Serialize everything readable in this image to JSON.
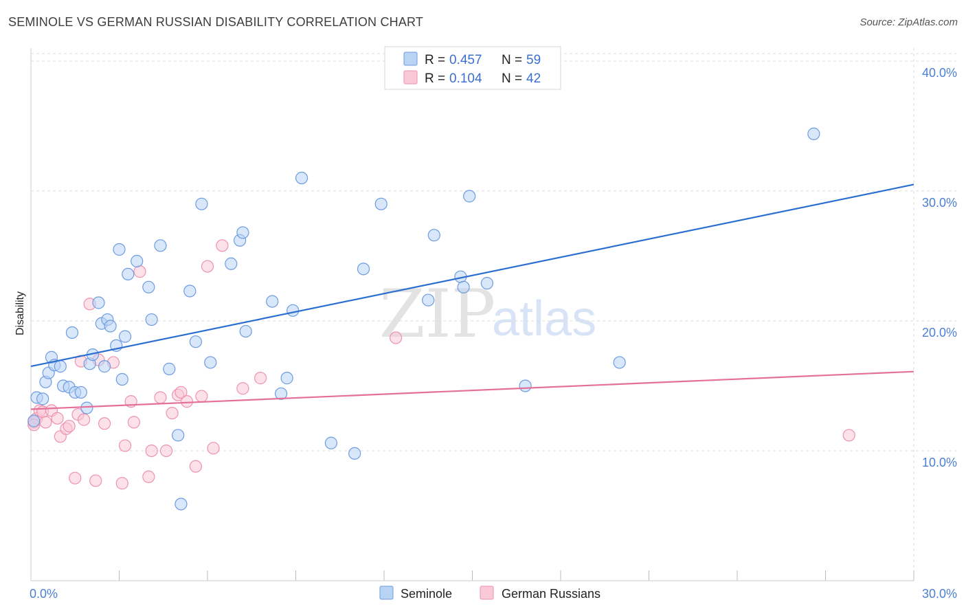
{
  "title": "SEMINOLE VS GERMAN RUSSIAN DISABILITY CORRELATION CHART",
  "source": "Source: ZipAtlas.com",
  "watermark": {
    "zip": "ZIP",
    "atlas": "atlas"
  },
  "colors": {
    "seminole_fill": "#b9d3f5",
    "seminole_stroke": "#6c9be0",
    "seminole_line": "#2a6fd0",
    "german_fill": "#f9c9d7",
    "german_stroke": "#ee92ae",
    "german_line": "#e4709a",
    "axis_text": "#4a7fd4",
    "grid": "#dddddd"
  },
  "legend": {
    "seminole": {
      "r_label": "R =",
      "r_value": "0.457",
      "n_label": "N =",
      "n_value": "59"
    },
    "german": {
      "r_label": "R =",
      "r_value": "0.104",
      "n_label": "N =",
      "n_value": "42"
    }
  },
  "chart_data": {
    "type": "scatter",
    "ylabel": "Disability",
    "xlim": [
      0,
      30
    ],
    "ylim": [
      0,
      41
    ],
    "x_tick_labels": [
      {
        "value": 0,
        "label": "0.0%"
      },
      {
        "value": 30,
        "label": "30.0%"
      }
    ],
    "y_tick_labels": [
      {
        "value": 10,
        "label": "10.0%"
      },
      {
        "value": 20,
        "label": "20.0%"
      },
      {
        "value": 30,
        "label": "30.0%"
      },
      {
        "value": 40,
        "label": "40.0%"
      }
    ],
    "x_minor_ticks": [
      3,
      6,
      9,
      12,
      15,
      18,
      21,
      24,
      27,
      30
    ],
    "grid": true,
    "legend_position": "top-center",
    "series": [
      {
        "name": "Seminole",
        "trend": {
          "x": [
            0,
            30
          ],
          "y": [
            16.5,
            30.5
          ]
        },
        "points": [
          [
            0.2,
            14.1
          ],
          [
            0.4,
            14.0
          ],
          [
            0.5,
            15.3
          ],
          [
            0.6,
            16.0
          ],
          [
            0.7,
            17.2
          ],
          [
            0.8,
            16.6
          ],
          [
            1.0,
            16.5
          ],
          [
            1.1,
            15.0
          ],
          [
            1.3,
            14.9
          ],
          [
            1.4,
            19.1
          ],
          [
            1.5,
            14.5
          ],
          [
            1.7,
            14.5
          ],
          [
            1.9,
            13.3
          ],
          [
            2.0,
            16.7
          ],
          [
            2.1,
            17.4
          ],
          [
            2.3,
            21.4
          ],
          [
            2.4,
            19.8
          ],
          [
            2.5,
            16.5
          ],
          [
            2.6,
            20.1
          ],
          [
            2.7,
            19.6
          ],
          [
            2.9,
            18.1
          ],
          [
            3.0,
            25.5
          ],
          [
            3.1,
            15.5
          ],
          [
            3.2,
            18.8
          ],
          [
            3.3,
            23.6
          ],
          [
            3.6,
            24.6
          ],
          [
            4.0,
            22.6
          ],
          [
            4.1,
            20.1
          ],
          [
            4.4,
            25.8
          ],
          [
            4.7,
            16.3
          ],
          [
            5.0,
            11.2
          ],
          [
            5.1,
            5.9
          ],
          [
            5.4,
            22.3
          ],
          [
            5.6,
            18.4
          ],
          [
            5.8,
            29.0
          ],
          [
            6.1,
            16.8
          ],
          [
            6.8,
            24.4
          ],
          [
            7.1,
            26.2
          ],
          [
            7.2,
            26.8
          ],
          [
            7.3,
            19.2
          ],
          [
            8.2,
            21.5
          ],
          [
            8.5,
            14.4
          ],
          [
            8.7,
            15.6
          ],
          [
            8.9,
            20.8
          ],
          [
            9.2,
            31.0
          ],
          [
            10.2,
            10.6
          ],
          [
            11.0,
            9.8
          ],
          [
            11.3,
            24.0
          ],
          [
            11.9,
            29.0
          ],
          [
            13.5,
            21.6
          ],
          [
            13.7,
            26.6
          ],
          [
            14.6,
            23.4
          ],
          [
            14.7,
            22.6
          ],
          [
            14.9,
            29.6
          ],
          [
            15.5,
            22.9
          ],
          [
            16.8,
            15.0
          ],
          [
            20.0,
            16.8
          ],
          [
            26.6,
            34.4
          ],
          [
            0.1,
            12.3
          ]
        ]
      },
      {
        "name": "German Russians",
        "trend": {
          "x": [
            0,
            30
          ],
          "y": [
            13.2,
            16.1
          ]
        },
        "points": [
          [
            0.1,
            12.2
          ],
          [
            0.2,
            12.5
          ],
          [
            0.3,
            13.1
          ],
          [
            0.4,
            13.0
          ],
          [
            0.5,
            12.2
          ],
          [
            0.7,
            13.1
          ],
          [
            0.9,
            12.5
          ],
          [
            1.0,
            11.1
          ],
          [
            1.2,
            11.7
          ],
          [
            1.3,
            11.9
          ],
          [
            1.5,
            7.9
          ],
          [
            1.6,
            12.8
          ],
          [
            1.7,
            16.9
          ],
          [
            1.8,
            12.4
          ],
          [
            2.0,
            21.3
          ],
          [
            2.2,
            7.7
          ],
          [
            2.3,
            17.0
          ],
          [
            2.5,
            12.1
          ],
          [
            2.8,
            16.8
          ],
          [
            3.1,
            7.5
          ],
          [
            3.2,
            10.4
          ],
          [
            3.4,
            13.8
          ],
          [
            3.5,
            12.2
          ],
          [
            3.7,
            23.8
          ],
          [
            4.0,
            8.0
          ],
          [
            4.1,
            10.0
          ],
          [
            4.4,
            14.1
          ],
          [
            4.6,
            10.0
          ],
          [
            4.8,
            12.9
          ],
          [
            5.0,
            14.3
          ],
          [
            5.1,
            14.5
          ],
          [
            5.3,
            13.8
          ],
          [
            5.6,
            8.8
          ],
          [
            5.8,
            14.2
          ],
          [
            6.0,
            24.2
          ],
          [
            6.2,
            10.2
          ],
          [
            6.5,
            25.8
          ],
          [
            7.2,
            14.8
          ],
          [
            7.8,
            15.6
          ],
          [
            12.4,
            18.7
          ],
          [
            27.8,
            11.2
          ],
          [
            0.1,
            12.0
          ]
        ]
      }
    ]
  },
  "bottom_legend": [
    {
      "label": "Seminole"
    },
    {
      "label": "German Russians"
    }
  ]
}
